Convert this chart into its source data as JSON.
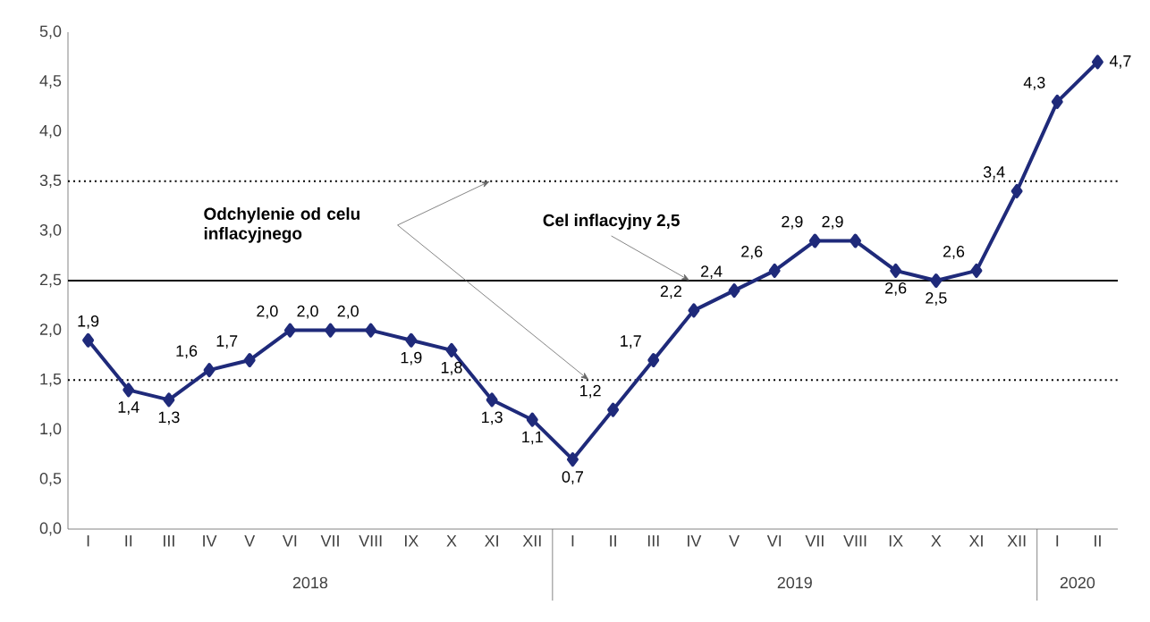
{
  "chart_data": {
    "type": "line",
    "categories": [
      "I",
      "II",
      "III",
      "IV",
      "V",
      "VI",
      "VII",
      "VIII",
      "IX",
      "X",
      "XI",
      "XII",
      "I",
      "II",
      "III",
      "IV",
      "V",
      "VI",
      "VII",
      "VIII",
      "IX",
      "X",
      "XI",
      "XII",
      "I",
      "II"
    ],
    "values": [
      1.9,
      1.4,
      1.3,
      1.6,
      1.7,
      2.0,
      2.0,
      2.0,
      1.9,
      1.8,
      1.3,
      1.1,
      0.7,
      1.2,
      1.7,
      2.2,
      2.4,
      2.6,
      2.9,
      2.9,
      2.6,
      2.5,
      2.6,
      3.4,
      4.3,
      4.7
    ],
    "value_labels": [
      "1,9",
      "1,4",
      "1,3",
      "1,6",
      "1,7",
      "2,0",
      "2,0",
      "2,0",
      "1,9",
      "1,8",
      "1,3",
      "1,1",
      "0,7",
      "1,2",
      "1,7",
      "2,2",
      "2,4",
      "2,6",
      "2,9",
      "2,9",
      "2,6",
      "2,5",
      "2,6",
      "3,4",
      "4,3",
      "4,7"
    ],
    "color": "#1f2a7a",
    "marker": "diamond",
    "line_style": "solid",
    "ylim": [
      0,
      5
    ],
    "yticks": [
      {
        "value": 0,
        "label": "0,0"
      },
      {
        "value": 0.5,
        "label": "0,5"
      },
      {
        "value": 1,
        "label": "1,0"
      },
      {
        "value": 1.5,
        "label": "1,5"
      },
      {
        "value": 2,
        "label": "2,0"
      },
      {
        "value": 2.5,
        "label": "2,5"
      },
      {
        "value": 3,
        "label": "3,0"
      },
      {
        "value": 3.5,
        "label": "3,5"
      },
      {
        "value": 4,
        "label": "4,0"
      },
      {
        "value": 4.5,
        "label": "4,5"
      },
      {
        "value": 5,
        "label": "5,0"
      }
    ],
    "ref_lines": [
      {
        "axis": "y",
        "value": 2.5,
        "label": "Cel inflacyjny 2,5",
        "color": "#000000",
        "line_style": "solid"
      },
      {
        "axis": "y",
        "value": 1.5,
        "color": "#000000",
        "line_style": "dotted"
      },
      {
        "axis": "y",
        "value": 3.5,
        "color": "#000000",
        "line_style": "dotted"
      }
    ],
    "annotations": [
      {
        "text": "Odchylenie od celu inflacyjnego",
        "y": 3.5
      },
      "2018",
      "2019",
      "2020"
    ],
    "grid": false
  }
}
